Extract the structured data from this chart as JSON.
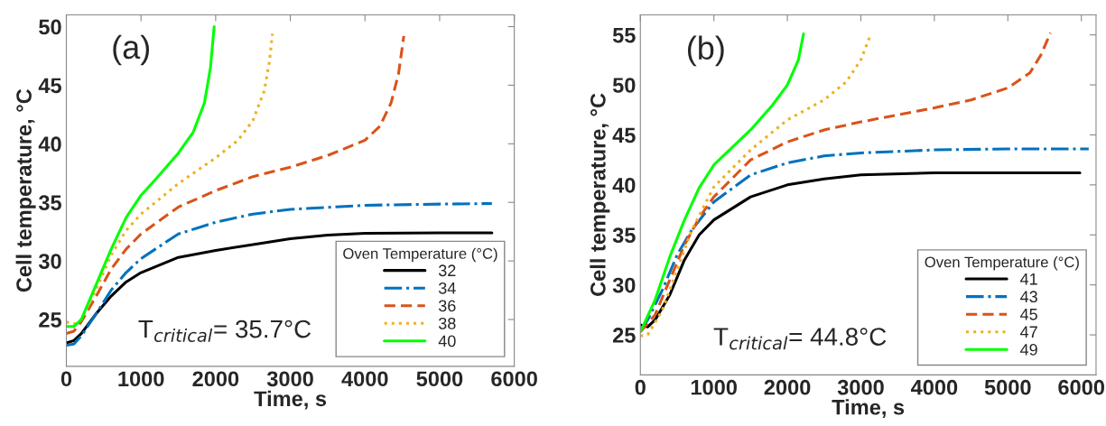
{
  "chart_data": [
    {
      "type": "line",
      "xlabel": "Time, s",
      "ylabel": "Cell temperature, °C",
      "legend_title": "Oven Temperature (°C)",
      "legend": "bottom right",
      "grid": false,
      "xlim": [
        0,
        6000
      ],
      "xticks": [
        0,
        1000,
        2000,
        3000,
        4000,
        5000,
        6000
      ],
      "ylim": [
        21,
        51
      ],
      "yticks": [
        25,
        30,
        35,
        40,
        45,
        50
      ],
      "annotations": [
        "(a)",
        "T$_{critical}$= 35.7°C"
      ],
      "series": [
        {
          "name": "32",
          "color": "#000000",
          "line_style": "solid",
          "x": [
            0,
            100,
            200,
            400,
            600,
            800,
            1000,
            1500,
            2000,
            2500,
            3000,
            3500,
            4000,
            5000,
            5700
          ],
          "values": [
            23.0,
            23.2,
            23.8,
            25.5,
            27.0,
            28.2,
            29.0,
            30.3,
            30.9,
            31.4,
            31.9,
            32.2,
            32.35,
            32.4,
            32.4
          ]
        },
        {
          "name": "34",
          "color": "#0072bd",
          "line_style": "dashdot",
          "x": [
            0,
            100,
            200,
            400,
            600,
            800,
            1000,
            1500,
            2000,
            2500,
            3000,
            4000,
            5000,
            5700
          ],
          "values": [
            22.8,
            22.9,
            23.6,
            25.5,
            27.5,
            29.0,
            30.2,
            32.3,
            33.3,
            34.0,
            34.4,
            34.75,
            34.85,
            34.9
          ]
        },
        {
          "name": "36",
          "color": "#d95319",
          "line_style": "dashed",
          "x": [
            0,
            100,
            200,
            400,
            600,
            800,
            1000,
            1500,
            2000,
            2500,
            3000,
            3500,
            4000,
            4200,
            4350,
            4450,
            4520
          ],
          "values": [
            23.8,
            24.0,
            24.8,
            27.0,
            29.3,
            31.0,
            32.3,
            34.6,
            36.0,
            37.2,
            38.0,
            39.0,
            40.3,
            41.5,
            43.5,
            46.0,
            49.2
          ]
        },
        {
          "name": "38",
          "color": "#edb120",
          "line_style": "dotted",
          "x": [
            0,
            100,
            200,
            400,
            600,
            800,
            1000,
            1500,
            2000,
            2300,
            2500,
            2650,
            2720,
            2760
          ],
          "values": [
            24.8,
            24.6,
            25.0,
            27.6,
            30.5,
            32.6,
            34.0,
            36.6,
            38.8,
            40.3,
            42.0,
            44.5,
            47.0,
            49.4
          ]
        },
        {
          "name": "40",
          "color": "#00ff00",
          "line_style": "solid",
          "x": [
            0,
            100,
            200,
            400,
            600,
            800,
            1000,
            1200,
            1500,
            1700,
            1850,
            1930,
            1980
          ],
          "values": [
            24.4,
            24.4,
            25.0,
            28.0,
            31.0,
            33.7,
            35.6,
            37.0,
            39.2,
            41.0,
            43.5,
            46.5,
            50.0
          ]
        }
      ]
    },
    {
      "type": "line",
      "xlabel": "Time, s",
      "ylabel": "Cell temperature, °C",
      "legend_title": "Oven Temperature (°C)",
      "legend": "bottom right",
      "grid": false,
      "xlim": [
        0,
        6200
      ],
      "xticks": [
        0,
        1000,
        2000,
        3000,
        4000,
        5000,
        6000
      ],
      "ylim": [
        21,
        57
      ],
      "yticks": [
        25,
        30,
        35,
        40,
        45,
        50,
        55
      ],
      "annotations": [
        "(b)",
        "T$_{critical}$= 44.8°C"
      ],
      "series": [
        {
          "name": "41",
          "color": "#000000",
          "line_style": "solid",
          "x": [
            0,
            100,
            200,
            400,
            600,
            800,
            1000,
            1500,
            2000,
            2500,
            3000,
            4000,
            5000,
            5980
          ],
          "values": [
            26.0,
            25.8,
            26.5,
            29.0,
            32.5,
            35.0,
            36.5,
            38.8,
            40.0,
            40.6,
            41.0,
            41.2,
            41.2,
            41.2
          ]
        },
        {
          "name": "43",
          "color": "#0072bd",
          "line_style": "dashdot",
          "x": [
            0,
            100,
            300,
            500,
            700,
            1000,
            1500,
            2000,
            2500,
            3000,
            4000,
            5000,
            6100
          ],
          "values": [
            25.5,
            26.5,
            29.5,
            33.0,
            35.5,
            38.3,
            41.0,
            42.2,
            42.9,
            43.2,
            43.5,
            43.6,
            43.6
          ]
        },
        {
          "name": "45",
          "color": "#d95319",
          "line_style": "dashed",
          "x": [
            0,
            200,
            400,
            600,
            800,
            1000,
            1500,
            2000,
            2500,
            3000,
            3500,
            4000,
            4500,
            5000,
            5300,
            5450,
            5580
          ],
          "values": [
            25.3,
            27.0,
            30.5,
            34.0,
            36.7,
            38.8,
            42.5,
            44.3,
            45.5,
            46.3,
            47.0,
            47.7,
            48.5,
            49.7,
            51.2,
            53.0,
            55.2
          ]
        },
        {
          "name": "47",
          "color": "#edb120",
          "line_style": "dotted",
          "x": [
            0,
            100,
            300,
            500,
            700,
            1000,
            1500,
            2000,
            2500,
            2800,
            3000,
            3120
          ],
          "values": [
            24.9,
            25.0,
            27.5,
            31.5,
            35.5,
            39.8,
            43.5,
            46.5,
            48.5,
            50.3,
            52.5,
            54.8
          ]
        },
        {
          "name": "49",
          "color": "#00ff00",
          "line_style": "solid",
          "x": [
            0,
            200,
            400,
            600,
            800,
            1000,
            1500,
            1800,
            2000,
            2150,
            2220
          ],
          "values": [
            25.3,
            28.5,
            32.8,
            36.5,
            39.7,
            42.0,
            45.5,
            48.0,
            50.0,
            52.5,
            55.1
          ]
        }
      ]
    }
  ]
}
